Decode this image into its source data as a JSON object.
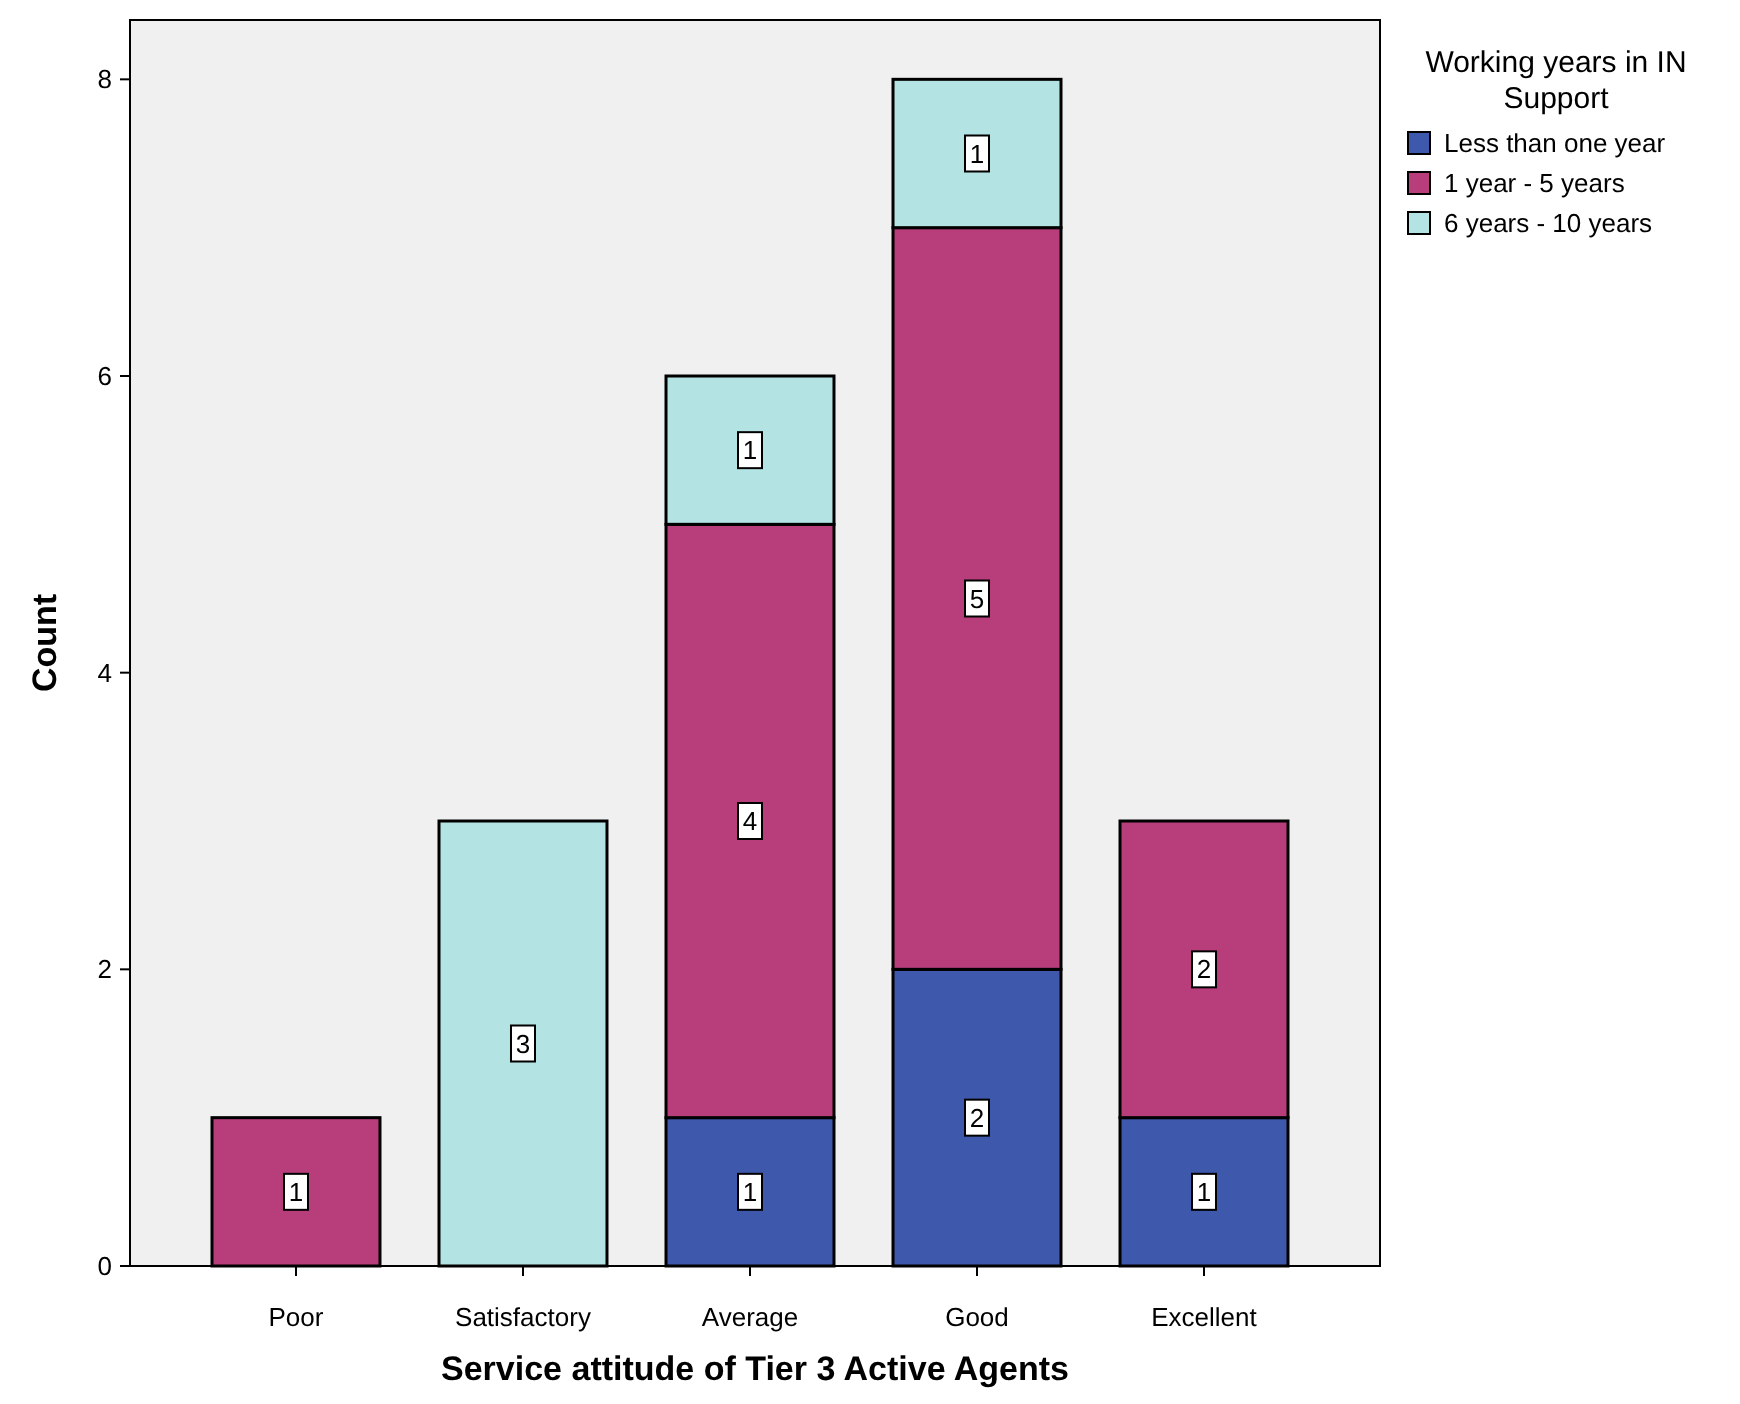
{
  "chart_data": {
    "type": "bar",
    "stacked": true,
    "xlabel": "Service attitude of Tier 3 Active Agents",
    "ylabel": "Count",
    "legend_title": "Working years in IN Support",
    "legend": "right",
    "data_labels": true,
    "grid": false,
    "categories": [
      "Poor",
      "Satisfactory",
      "Average",
      "Good",
      "Excellent"
    ],
    "ylim": [
      0,
      8.4
    ],
    "yticks": [
      0,
      2,
      4,
      6,
      8
    ],
    "series": [
      {
        "name": "Less than one year",
        "color": "#3e58ac",
        "values": [
          null,
          null,
          1,
          2,
          1
        ]
      },
      {
        "name": "1 year - 5 years",
        "color": "#b83d7b",
        "values": [
          1,
          null,
          4,
          5,
          2
        ]
      },
      {
        "name": "6 years - 10 years",
        "color": "#b3e3e3",
        "values": [
          null,
          3,
          1,
          1,
          null
        ]
      }
    ]
  }
}
